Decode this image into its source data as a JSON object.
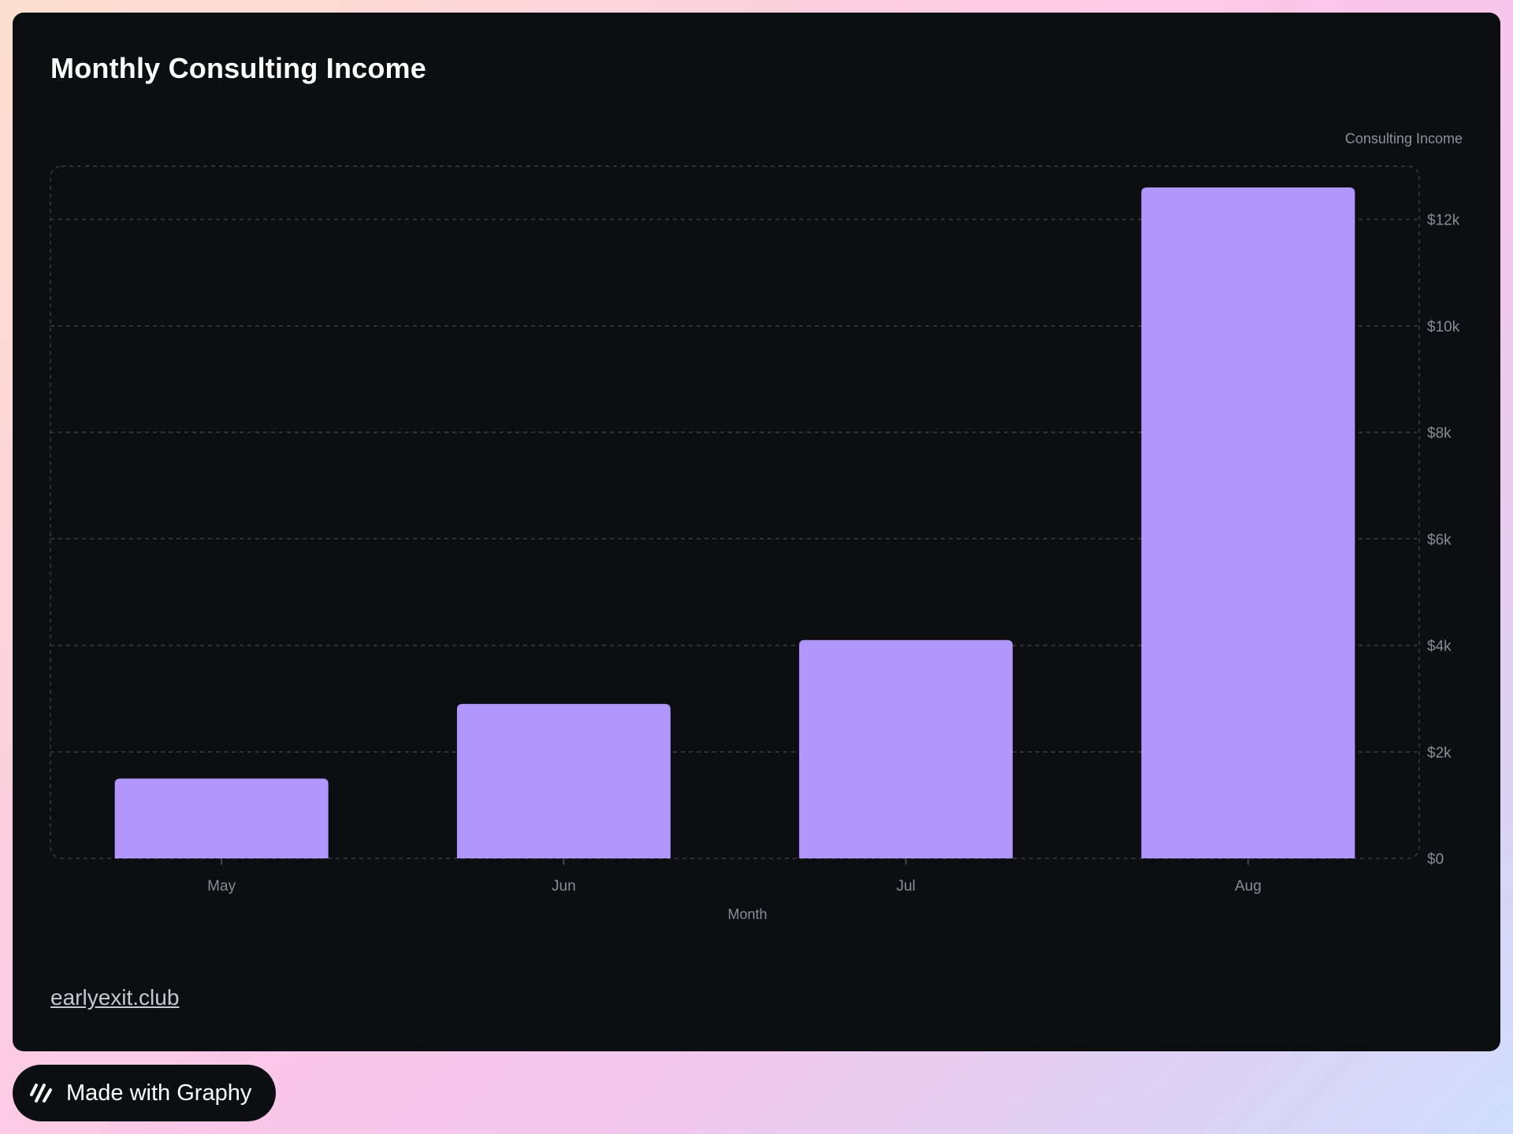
{
  "title": "Monthly Consulting Income",
  "footer_link": "earlyexit.club",
  "badge": {
    "text": "Made with Graphy",
    "icon": "graphy-logo-icon"
  },
  "colors": {
    "bar": "#b197fc",
    "background": "#0d0e12",
    "grid": "#3a3c44",
    "text": "#8a8c95"
  },
  "chart_data": {
    "type": "bar",
    "title": "Monthly Consulting Income",
    "xlabel": "Month",
    "ylabel": "",
    "legend": [
      "Consulting Income"
    ],
    "legend_placement": "top-right",
    "y_axis_side": "right",
    "categories": [
      "May",
      "Jun",
      "Jul",
      "Aug"
    ],
    "series": [
      {
        "name": "Consulting Income",
        "values": [
          1500,
          2900,
          4100,
          12600
        ]
      }
    ],
    "ylim": [
      0,
      13000
    ],
    "yticks": [
      0,
      2000,
      4000,
      6000,
      8000,
      10000,
      12000
    ],
    "ytick_labels": [
      "$0",
      "$2k",
      "$4k",
      "$6k",
      "$8k",
      "$10k",
      "$12k"
    ],
    "grid": true
  }
}
